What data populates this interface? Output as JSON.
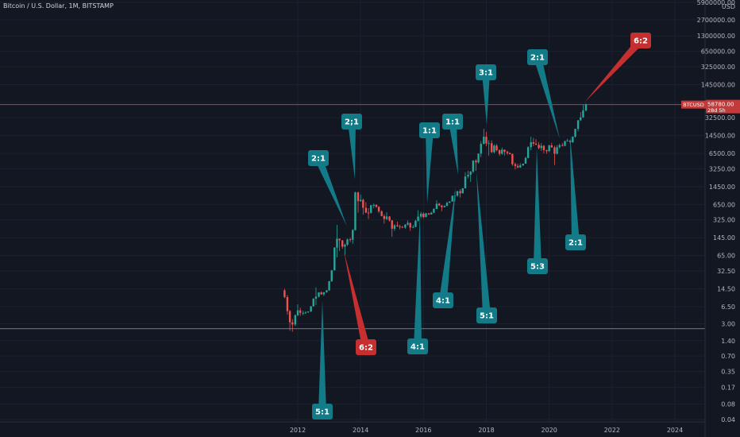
{
  "header": {
    "title": "Bitcoin / U.S. Dollar, 1M, BITSTAMP"
  },
  "colors": {
    "background": "#131722",
    "up": "#26a69a",
    "down": "#ef5350",
    "callout_teal": "#137b87",
    "callout_red": "#c62f2f",
    "price_line": "#c23a3a",
    "grid": "#1c2030"
  },
  "price_badge": {
    "symbol": "BTCUSD",
    "price": "58780.00",
    "countdown": "28d 5h"
  },
  "chart_data": {
    "type": "candlestick",
    "title": "Bitcoin / U.S. Dollar, 1M, BITSTAMP",
    "yscale": "log",
    "ylabel": "USD",
    "y_ticks": [
      "5900000.00",
      "2700000.00",
      "1300000.00",
      "650000.00",
      "325000.00",
      "145000.00",
      "65000.00",
      "32500.00",
      "14500.00",
      "6500.00",
      "3250.00",
      "1450.00",
      "650.00",
      "325.00",
      "145.00",
      "65.00",
      "32.50",
      "14.50",
      "6.50",
      "3.00",
      "1.40",
      "0.70",
      "0.35",
      "0.17",
      "0.08",
      "0.04"
    ],
    "x_ticks": [
      "2012",
      "2014",
      "2016",
      "2018",
      "2020",
      "2022",
      "2024"
    ],
    "x_range": [
      2010.7,
      2025.3
    ],
    "series": [
      {
        "date": 2011.58,
        "open": 13.5,
        "high": 14.5,
        "low": 9.5,
        "close": 10
      },
      {
        "date": 2011.67,
        "open": 10,
        "high": 11,
        "low": 4.5,
        "close": 5.3
      },
      {
        "date": 2011.75,
        "open": 5.3,
        "high": 5.6,
        "low": 2.2,
        "close": 3.2
      },
      {
        "date": 2011.83,
        "open": 3.2,
        "high": 3.7,
        "low": 2.1,
        "close": 2.9
      },
      {
        "date": 2011.92,
        "open": 2.9,
        "high": 4.6,
        "low": 2.7,
        "close": 4.4
      },
      {
        "date": 2012.0,
        "open": 4.4,
        "high": 7.2,
        "low": 4.2,
        "close": 5.5
      },
      {
        "date": 2012.08,
        "open": 5.5,
        "high": 6.2,
        "low": 4.3,
        "close": 4.9
      },
      {
        "date": 2012.17,
        "open": 4.9,
        "high": 5.4,
        "low": 4.4,
        "close": 4.9
      },
      {
        "date": 2012.25,
        "open": 4.9,
        "high": 5.3,
        "low": 4.7,
        "close": 5.0
      },
      {
        "date": 2012.33,
        "open": 5.0,
        "high": 5.3,
        "low": 4.9,
        "close": 5.2
      },
      {
        "date": 2012.42,
        "open": 5.2,
        "high": 6.7,
        "low": 5.1,
        "close": 6.6
      },
      {
        "date": 2012.5,
        "open": 6.6,
        "high": 9.5,
        "low": 6.5,
        "close": 9.3
      },
      {
        "date": 2012.58,
        "open": 9.3,
        "high": 15.5,
        "low": 7.0,
        "close": 10.2
      },
      {
        "date": 2012.67,
        "open": 10.2,
        "high": 12.5,
        "low": 9.8,
        "close": 12.3
      },
      {
        "date": 2012.75,
        "open": 12.3,
        "high": 13.0,
        "low": 11.2,
        "close": 11.3
      },
      {
        "date": 2012.83,
        "open": 11.3,
        "high": 12.5,
        "low": 10.5,
        "close": 12.4
      },
      {
        "date": 2012.92,
        "open": 12.4,
        "high": 13.8,
        "low": 12.2,
        "close": 13.5
      },
      {
        "date": 2013.0,
        "open": 13.5,
        "high": 20.8,
        "low": 13.2,
        "close": 20.4
      },
      {
        "date": 2013.08,
        "open": 20.4,
        "high": 34,
        "low": 19.8,
        "close": 33.4
      },
      {
        "date": 2013.17,
        "open": 33.4,
        "high": 95,
        "low": 33,
        "close": 93
      },
      {
        "date": 2013.25,
        "open": 93,
        "high": 260,
        "low": 60,
        "close": 139
      },
      {
        "date": 2013.33,
        "open": 139,
        "high": 140,
        "low": 80,
        "close": 129
      },
      {
        "date": 2013.42,
        "open": 129,
        "high": 131,
        "low": 88,
        "close": 97
      },
      {
        "date": 2013.5,
        "open": 97,
        "high": 112,
        "low": 65,
        "close": 106
      },
      {
        "date": 2013.58,
        "open": 106,
        "high": 140,
        "low": 100,
        "close": 135
      },
      {
        "date": 2013.67,
        "open": 135,
        "high": 146,
        "low": 119,
        "close": 133
      },
      {
        "date": 2013.75,
        "open": 133,
        "high": 215,
        "low": 110,
        "close": 205
      },
      {
        "date": 2013.83,
        "open": 205,
        "high": 1160,
        "low": 200,
        "close": 1120
      },
      {
        "date": 2013.92,
        "open": 1120,
        "high": 1163,
        "low": 450,
        "close": 754
      },
      {
        "date": 2014.0,
        "open": 754,
        "high": 1020,
        "low": 740,
        "close": 800
      },
      {
        "date": 2014.08,
        "open": 800,
        "high": 850,
        "low": 410,
        "close": 560
      },
      {
        "date": 2014.17,
        "open": 560,
        "high": 720,
        "low": 440,
        "close": 450
      },
      {
        "date": 2014.25,
        "open": 450,
        "high": 550,
        "low": 340,
        "close": 447
      },
      {
        "date": 2014.33,
        "open": 447,
        "high": 630,
        "low": 430,
        "close": 628
      },
      {
        "date": 2014.42,
        "open": 628,
        "high": 680,
        "low": 550,
        "close": 637
      },
      {
        "date": 2014.5,
        "open": 637,
        "high": 660,
        "low": 560,
        "close": 585
      },
      {
        "date": 2014.58,
        "open": 585,
        "high": 600,
        "low": 440,
        "close": 478
      },
      {
        "date": 2014.67,
        "open": 478,
        "high": 500,
        "low": 380,
        "close": 387
      },
      {
        "date": 2014.75,
        "open": 387,
        "high": 420,
        "low": 275,
        "close": 338
      },
      {
        "date": 2014.83,
        "open": 338,
        "high": 460,
        "low": 320,
        "close": 378
      },
      {
        "date": 2014.92,
        "open": 378,
        "high": 385,
        "low": 300,
        "close": 318
      },
      {
        "date": 2015.0,
        "open": 318,
        "high": 320,
        "low": 152,
        "close": 218
      },
      {
        "date": 2015.08,
        "open": 218,
        "high": 265,
        "low": 198,
        "close": 255
      },
      {
        "date": 2015.17,
        "open": 255,
        "high": 300,
        "low": 236,
        "close": 244
      },
      {
        "date": 2015.25,
        "open": 244,
        "high": 260,
        "low": 212,
        "close": 236
      },
      {
        "date": 2015.33,
        "open": 236,
        "high": 248,
        "low": 227,
        "close": 229
      },
      {
        "date": 2015.42,
        "open": 229,
        "high": 268,
        "low": 218,
        "close": 263
      },
      {
        "date": 2015.5,
        "open": 263,
        "high": 318,
        "low": 252,
        "close": 284
      },
      {
        "date": 2015.58,
        "open": 284,
        "high": 286,
        "low": 198,
        "close": 230
      },
      {
        "date": 2015.67,
        "open": 230,
        "high": 260,
        "low": 225,
        "close": 236
      },
      {
        "date": 2015.75,
        "open": 236,
        "high": 325,
        "low": 235,
        "close": 313
      },
      {
        "date": 2015.83,
        "open": 313,
        "high": 500,
        "low": 300,
        "close": 377
      },
      {
        "date": 2015.92,
        "open": 377,
        "high": 467,
        "low": 350,
        "close": 430
      },
      {
        "date": 2016.0,
        "open": 430,
        "high": 460,
        "low": 350,
        "close": 369
      },
      {
        "date": 2016.08,
        "open": 369,
        "high": 445,
        "low": 365,
        "close": 437
      },
      {
        "date": 2016.17,
        "open": 437,
        "high": 440,
        "low": 403,
        "close": 415
      },
      {
        "date": 2016.25,
        "open": 415,
        "high": 468,
        "low": 413,
        "close": 448
      },
      {
        "date": 2016.33,
        "open": 448,
        "high": 550,
        "low": 442,
        "close": 531
      },
      {
        "date": 2016.42,
        "open": 531,
        "high": 780,
        "low": 530,
        "close": 673
      },
      {
        "date": 2016.5,
        "open": 673,
        "high": 704,
        "low": 605,
        "close": 624
      },
      {
        "date": 2016.58,
        "open": 624,
        "high": 630,
        "low": 480,
        "close": 575
      },
      {
        "date": 2016.67,
        "open": 575,
        "high": 625,
        "low": 570,
        "close": 609
      },
      {
        "date": 2016.75,
        "open": 609,
        "high": 740,
        "low": 604,
        "close": 700
      },
      {
        "date": 2016.83,
        "open": 700,
        "high": 753,
        "low": 690,
        "close": 742
      },
      {
        "date": 2016.92,
        "open": 742,
        "high": 975,
        "low": 740,
        "close": 963
      },
      {
        "date": 2017.0,
        "open": 963,
        "high": 1150,
        "low": 750,
        "close": 970
      },
      {
        "date": 2017.08,
        "open": 970,
        "high": 1200,
        "low": 920,
        "close": 1190
      },
      {
        "date": 2017.17,
        "open": 1190,
        "high": 1300,
        "low": 890,
        "close": 1080
      },
      {
        "date": 2017.25,
        "open": 1080,
        "high": 1360,
        "low": 1060,
        "close": 1350
      },
      {
        "date": 2017.33,
        "open": 1350,
        "high": 2780,
        "low": 1340,
        "close": 2300
      },
      {
        "date": 2017.42,
        "open": 2300,
        "high": 2980,
        "low": 2100,
        "close": 2480
      },
      {
        "date": 2017.5,
        "open": 2480,
        "high": 2930,
        "low": 1800,
        "close": 2870
      },
      {
        "date": 2017.58,
        "open": 2870,
        "high": 4800,
        "low": 2670,
        "close": 4700
      },
      {
        "date": 2017.67,
        "open": 4700,
        "high": 5000,
        "low": 2970,
        "close": 4340
      },
      {
        "date": 2017.75,
        "open": 4340,
        "high": 6450,
        "low": 4100,
        "close": 6450
      },
      {
        "date": 2017.83,
        "open": 6450,
        "high": 11300,
        "low": 5500,
        "close": 10000
      },
      {
        "date": 2017.92,
        "open": 10000,
        "high": 19700,
        "low": 9800,
        "close": 13800
      },
      {
        "date": 2018.0,
        "open": 13800,
        "high": 17200,
        "low": 9000,
        "close": 10200
      },
      {
        "date": 2018.08,
        "open": 10200,
        "high": 11800,
        "low": 5900,
        "close": 10300
      },
      {
        "date": 2018.17,
        "open": 10300,
        "high": 11700,
        "low": 6600,
        "close": 6900
      },
      {
        "date": 2018.25,
        "open": 6900,
        "high": 9800,
        "low": 6500,
        "close": 9250
      },
      {
        "date": 2018.33,
        "open": 9250,
        "high": 9950,
        "low": 7100,
        "close": 7500
      },
      {
        "date": 2018.42,
        "open": 7500,
        "high": 7800,
        "low": 5800,
        "close": 6400
      },
      {
        "date": 2018.5,
        "open": 6400,
        "high": 8500,
        "low": 6100,
        "close": 7700
      },
      {
        "date": 2018.58,
        "open": 7700,
        "high": 7780,
        "low": 5900,
        "close": 7000
      },
      {
        "date": 2018.67,
        "open": 7000,
        "high": 7400,
        "low": 6100,
        "close": 6600
      },
      {
        "date": 2018.75,
        "open": 6600,
        "high": 6800,
        "low": 6200,
        "close": 6300
      },
      {
        "date": 2018.83,
        "open": 6300,
        "high": 6500,
        "low": 3700,
        "close": 4000
      },
      {
        "date": 2018.92,
        "open": 4000,
        "high": 4300,
        "low": 3150,
        "close": 3700
      },
      {
        "date": 2019.0,
        "open": 3700,
        "high": 4100,
        "low": 3350,
        "close": 3450
      },
      {
        "date": 2019.08,
        "open": 3450,
        "high": 4200,
        "low": 3400,
        "close": 3800
      },
      {
        "date": 2019.17,
        "open": 3800,
        "high": 4100,
        "low": 3700,
        "close": 4100
      },
      {
        "date": 2019.25,
        "open": 4100,
        "high": 5600,
        "low": 4100,
        "close": 5300
      },
      {
        "date": 2019.33,
        "open": 5300,
        "high": 9000,
        "low": 5200,
        "close": 8600
      },
      {
        "date": 2019.42,
        "open": 8600,
        "high": 13800,
        "low": 7500,
        "close": 10800
      },
      {
        "date": 2019.5,
        "open": 10800,
        "high": 13100,
        "low": 9100,
        "close": 10100
      },
      {
        "date": 2019.58,
        "open": 10100,
        "high": 12300,
        "low": 9400,
        "close": 9600
      },
      {
        "date": 2019.67,
        "open": 9600,
        "high": 10900,
        "low": 7800,
        "close": 8300
      },
      {
        "date": 2019.75,
        "open": 8300,
        "high": 10400,
        "low": 7300,
        "close": 9150
      },
      {
        "date": 2019.83,
        "open": 9150,
        "high": 9500,
        "low": 6550,
        "close": 7550
      },
      {
        "date": 2019.92,
        "open": 7550,
        "high": 7700,
        "low": 6400,
        "close": 7200
      },
      {
        "date": 2020.0,
        "open": 7200,
        "high": 9600,
        "low": 6900,
        "close": 9350
      },
      {
        "date": 2020.08,
        "open": 9350,
        "high": 10500,
        "low": 8400,
        "close": 8550
      },
      {
        "date": 2020.17,
        "open": 8550,
        "high": 9200,
        "low": 3850,
        "close": 6400
      },
      {
        "date": 2020.25,
        "open": 6400,
        "high": 9450,
        "low": 6200,
        "close": 8600
      },
      {
        "date": 2020.33,
        "open": 8600,
        "high": 10100,
        "low": 8100,
        "close": 9450
      },
      {
        "date": 2020.42,
        "open": 9450,
        "high": 10400,
        "low": 8900,
        "close": 9140
      },
      {
        "date": 2020.5,
        "open": 9140,
        "high": 11450,
        "low": 8950,
        "close": 11350
      },
      {
        "date": 2020.58,
        "open": 11350,
        "high": 12500,
        "low": 11100,
        "close": 11650
      },
      {
        "date": 2020.67,
        "open": 11650,
        "high": 12100,
        "low": 9900,
        "close": 10780
      },
      {
        "date": 2020.75,
        "open": 10780,
        "high": 14000,
        "low": 10400,
        "close": 13800
      },
      {
        "date": 2020.83,
        "open": 13800,
        "high": 19500,
        "low": 13200,
        "close": 19700
      },
      {
        "date": 2020.92,
        "open": 19700,
        "high": 29300,
        "low": 17600,
        "close": 28990
      },
      {
        "date": 2021.0,
        "open": 28990,
        "high": 41900,
        "low": 28100,
        "close": 33100
      },
      {
        "date": 2021.08,
        "open": 33100,
        "high": 58300,
        "low": 32300,
        "close": 45200
      },
      {
        "date": 2021.17,
        "open": 45200,
        "high": 61700,
        "low": 43000,
        "close": 58780
      }
    ],
    "annotations": [
      {
        "label": "5:1",
        "color": "red_teal",
        "from": [
          2012.75,
          2.9
        ],
        "text": "5:1"
      },
      {
        "label": "2:1",
        "text": "2:1"
      },
      {
        "label": "2;1",
        "text": "2;1"
      },
      {
        "label": "6:2",
        "text": "6:2"
      },
      {
        "label": "4:1",
        "text": "4:1"
      },
      {
        "label": "1:1",
        "text": "1:1"
      },
      {
        "label": "4:1",
        "text": "4:1"
      },
      {
        "label": "1:1",
        "text": "1:1"
      },
      {
        "label": "3:1",
        "text": "3:1"
      },
      {
        "label": "5:1",
        "text": "5:1"
      },
      {
        "label": "5:3",
        "text": "5:3"
      },
      {
        "label": "2:1",
        "text": "2:1"
      },
      {
        "label": "2:1",
        "text": "2:1"
      },
      {
        "label": "6:2",
        "text": "6:2"
      }
    ]
  }
}
